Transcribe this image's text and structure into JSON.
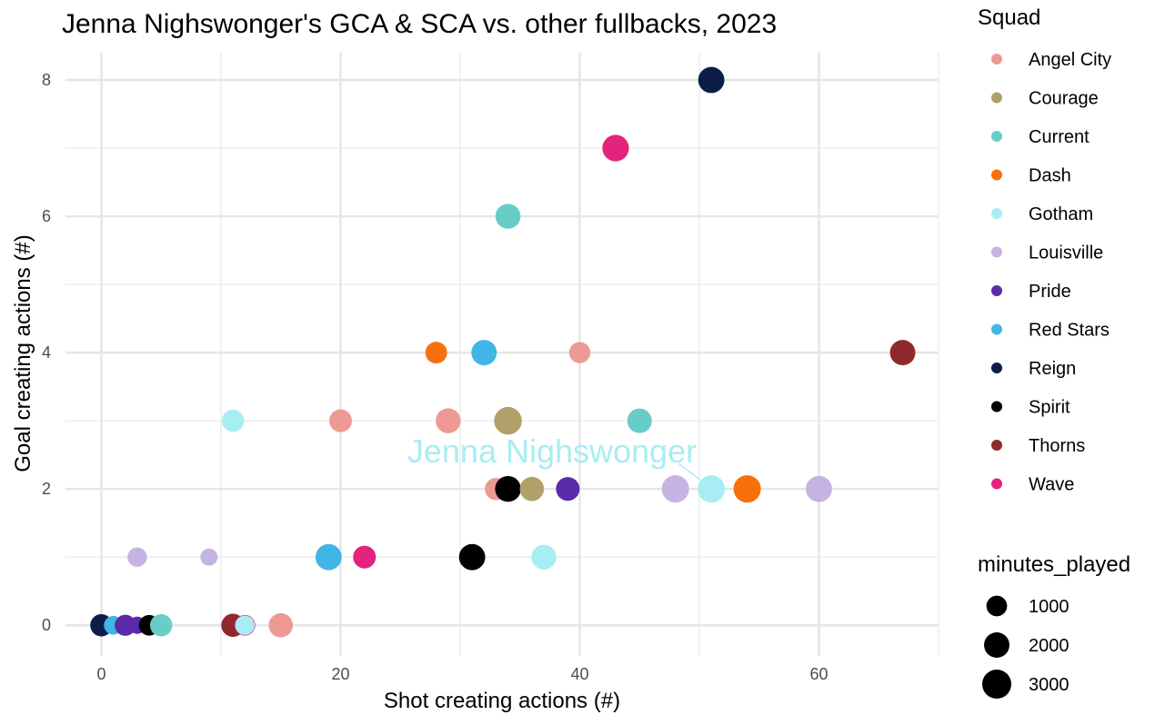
{
  "chart_data": {
    "type": "scatter",
    "title": "Jenna Nighswonger's GCA & SCA vs. other fullbacks, 2023",
    "xlabel": "Shot creating actions (#)",
    "ylabel": "Goal creating actions (#)",
    "xlim": [
      -3,
      70
    ],
    "ylim": [
      -0.45,
      8.4
    ],
    "xticks": [
      0,
      20,
      40,
      60
    ],
    "yticks": [
      0,
      2,
      4,
      6,
      8
    ],
    "grid": true,
    "legend_position": "right",
    "color_legend_title": "Squad",
    "size_legend_title": "minutes_played",
    "squads": [
      {
        "name": "Angel City",
        "color": "#ee9a94"
      },
      {
        "name": "Courage",
        "color": "#b2a06a"
      },
      {
        "name": "Current",
        "color": "#67cdc8"
      },
      {
        "name": "Dash",
        "color": "#f8700c"
      },
      {
        "name": "Gotham",
        "color": "#a8edf3"
      },
      {
        "name": "Louisville",
        "color": "#c5b4e3"
      },
      {
        "name": "Pride",
        "color": "#5b2aa8"
      },
      {
        "name": "Red Stars",
        "color": "#41b6e6"
      },
      {
        "name": "Reign",
        "color": "#0c1d48"
      },
      {
        "name": "Spirit",
        "color": "#000000"
      },
      {
        "name": "Thorns",
        "color": "#8f2a2c"
      },
      {
        "name": "Wave",
        "color": "#e3237d"
      }
    ],
    "size_legend": [
      1000,
      2000,
      3000
    ],
    "highlight": {
      "label": "Jenna Nighswonger",
      "x": 51,
      "y": 2,
      "color": "#a8edf3"
    },
    "points": [
      {
        "squad": "Reign",
        "x": 51,
        "y": 8,
        "minutes": 2200
      },
      {
        "squad": "Wave",
        "x": 43,
        "y": 7,
        "minutes": 2300
      },
      {
        "squad": "Current",
        "x": 34,
        "y": 6,
        "minutes": 1900
      },
      {
        "squad": "Dash",
        "x": 28,
        "y": 4,
        "minutes": 1200
      },
      {
        "squad": "Red Stars",
        "x": 32,
        "y": 4,
        "minutes": 2000
      },
      {
        "squad": "Angel City",
        "x": 40,
        "y": 4,
        "minutes": 1100
      },
      {
        "squad": "Thorns",
        "x": 67,
        "y": 4,
        "minutes": 2000
      },
      {
        "squad": "Gotham",
        "x": 11,
        "y": 3,
        "minutes": 1300
      },
      {
        "squad": "Angel City",
        "x": 20,
        "y": 3,
        "minutes": 1400
      },
      {
        "squad": "Angel City",
        "x": 29,
        "y": 3,
        "minutes": 1900
      },
      {
        "squad": "Courage",
        "x": 34,
        "y": 3,
        "minutes": 2600
      },
      {
        "squad": "Current",
        "x": 45,
        "y": 3,
        "minutes": 1800
      },
      {
        "squad": "Angel City",
        "x": 33,
        "y": 2,
        "minutes": 1300
      },
      {
        "squad": "Spirit",
        "x": 34,
        "y": 2,
        "minutes": 2100
      },
      {
        "squad": "Courage",
        "x": 36,
        "y": 2,
        "minutes": 1700
      },
      {
        "squad": "Pride",
        "x": 39,
        "y": 2,
        "minutes": 1600
      },
      {
        "squad": "Louisville",
        "x": 48,
        "y": 2,
        "minutes": 2500
      },
      {
        "squad": "Gotham",
        "x": 51,
        "y": 2,
        "minutes": 2500
      },
      {
        "squad": "Dash",
        "x": 54,
        "y": 2,
        "minutes": 2500
      },
      {
        "squad": "Louisville",
        "x": 60,
        "y": 2,
        "minutes": 2200
      },
      {
        "squad": "Louisville",
        "x": 3,
        "y": 1,
        "minutes": 800
      },
      {
        "squad": "Louisville",
        "x": 9,
        "y": 1,
        "minutes": 500
      },
      {
        "squad": "Red Stars",
        "x": 19,
        "y": 1,
        "minutes": 2200
      },
      {
        "squad": "Wave",
        "x": 22,
        "y": 1,
        "minutes": 1400
      },
      {
        "squad": "Spirit",
        "x": 31,
        "y": 1,
        "minutes": 2200
      },
      {
        "squad": "Gotham",
        "x": 37,
        "y": 1,
        "minutes": 1900
      },
      {
        "squad": "Reign",
        "x": 0,
        "y": 0,
        "minutes": 1300
      },
      {
        "squad": "Red Stars",
        "x": 1,
        "y": 0,
        "minutes": 700
      },
      {
        "squad": "Pride",
        "x": 2,
        "y": 0,
        "minutes": 1100
      },
      {
        "squad": "Pride",
        "x": 3,
        "y": 0,
        "minutes": 500
      },
      {
        "squad": "Spirit",
        "x": 4,
        "y": 0,
        "minutes": 1000
      },
      {
        "squad": "Current",
        "x": 5,
        "y": 0,
        "minutes": 1300
      },
      {
        "squad": "Thorns",
        "x": 11,
        "y": 0,
        "minutes": 1500
      },
      {
        "squad": "Wave",
        "x": 12,
        "y": 0,
        "minutes": 1000
      },
      {
        "squad": "Gotham",
        "x": 12,
        "y": 0,
        "minutes": 800
      },
      {
        "squad": "Angel City",
        "x": 15,
        "y": 0,
        "minutes": 1700
      }
    ]
  }
}
